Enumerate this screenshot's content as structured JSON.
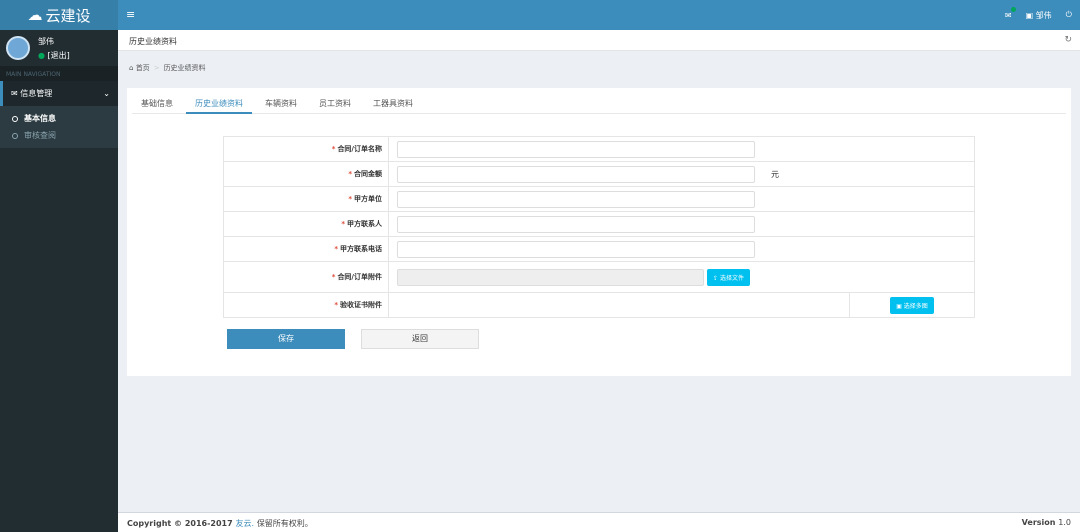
{
  "header": {
    "logo": "云建设",
    "user": "邹伟"
  },
  "sidebar": {
    "user_name": "邹伟",
    "status": "[退出]",
    "nav_header": "MAIN NAVIGATION",
    "menu": "信息管理",
    "items": [
      {
        "label": "基本信息"
      },
      {
        "label": "审核查阅"
      }
    ]
  },
  "page": {
    "title": "历史业绩资料",
    "breadcrumb": [
      "首页",
      "历史业绩资料"
    ]
  },
  "tabs": [
    {
      "label": "基础信息"
    },
    {
      "label": "历史业绩资料"
    },
    {
      "label": "车辆资料"
    },
    {
      "label": "员工资料"
    },
    {
      "label": "工器具资料"
    }
  ],
  "form": {
    "required_mark": "*",
    "fields": [
      {
        "label": "合同/订单名称"
      },
      {
        "label": "合同金额",
        "unit": "元"
      },
      {
        "label": "甲方单位"
      },
      {
        "label": "甲方联系人"
      },
      {
        "label": "甲方联系电话"
      },
      {
        "label": "合同/订单附件",
        "button": "选择文件"
      },
      {
        "label": "验收证书附件",
        "button": "选择多图"
      }
    ],
    "save": "保存",
    "back": "返回"
  },
  "footer": {
    "copyright": "Copyright © 2016-2017",
    "company": "友云.",
    "rights": "保留所有权利。",
    "version_label": "Version",
    "version": "1.0"
  }
}
